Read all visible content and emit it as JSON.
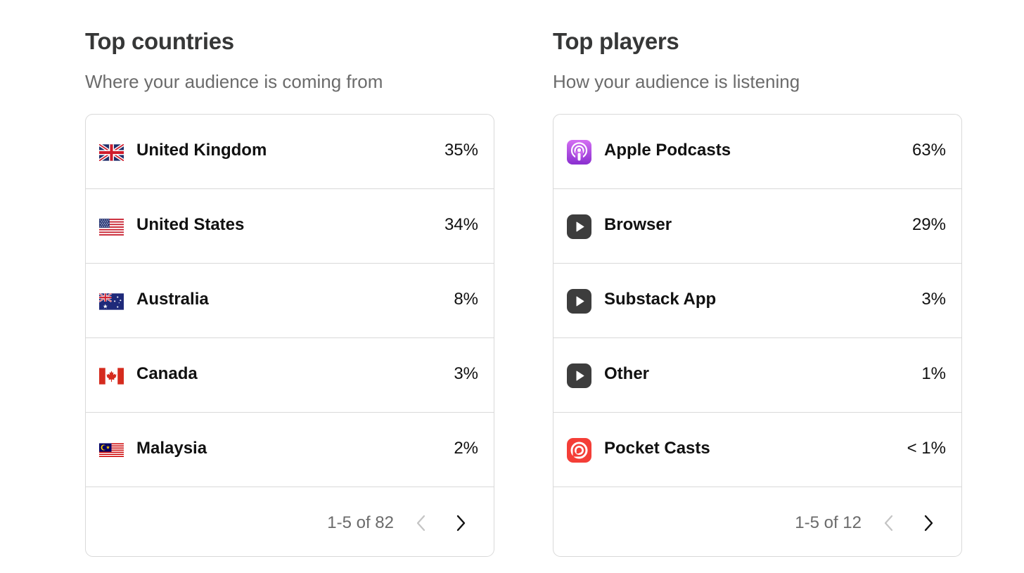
{
  "countries": {
    "title": "Top countries",
    "subtitle": "Where your audience is coming from",
    "rows": [
      {
        "icon": "uk-flag-icon",
        "label": "United Kingdom",
        "value": "35%"
      },
      {
        "icon": "us-flag-icon",
        "label": "United States",
        "value": "34%"
      },
      {
        "icon": "australia-flag-icon",
        "label": "Australia",
        "value": "8%"
      },
      {
        "icon": "canada-flag-icon",
        "label": "Canada",
        "value": "3%"
      },
      {
        "icon": "malaysia-flag-icon",
        "label": "Malaysia",
        "value": "2%"
      }
    ],
    "pagination": {
      "text": "1-5 of 82",
      "prev_icon": "chevron-left-icon",
      "next_icon": "chevron-right-icon"
    }
  },
  "players": {
    "title": "Top players",
    "subtitle": "How your audience is listening",
    "rows": [
      {
        "icon": "apple-podcasts-icon",
        "label": "Apple Podcasts",
        "value": "63%"
      },
      {
        "icon": "play-icon",
        "label": "Browser",
        "value": "29%"
      },
      {
        "icon": "play-icon",
        "label": "Substack App",
        "value": "3%"
      },
      {
        "icon": "play-icon",
        "label": "Other",
        "value": "1%"
      },
      {
        "icon": "pocket-casts-icon",
        "label": "Pocket Casts",
        "value": "< 1%"
      }
    ],
    "pagination": {
      "text": "1-5 of 12",
      "prev_icon": "chevron-left-icon",
      "next_icon": "chevron-right-icon"
    }
  },
  "colors": {
    "title": "#363737",
    "subtitle": "#6b6b6b",
    "border": "#d9d9d9",
    "apple_podcasts": "#b150e2",
    "play_icon": "#3d3d3d",
    "pocket_casts": "#f43e37",
    "pager_disabled": "#c4c4c4"
  }
}
